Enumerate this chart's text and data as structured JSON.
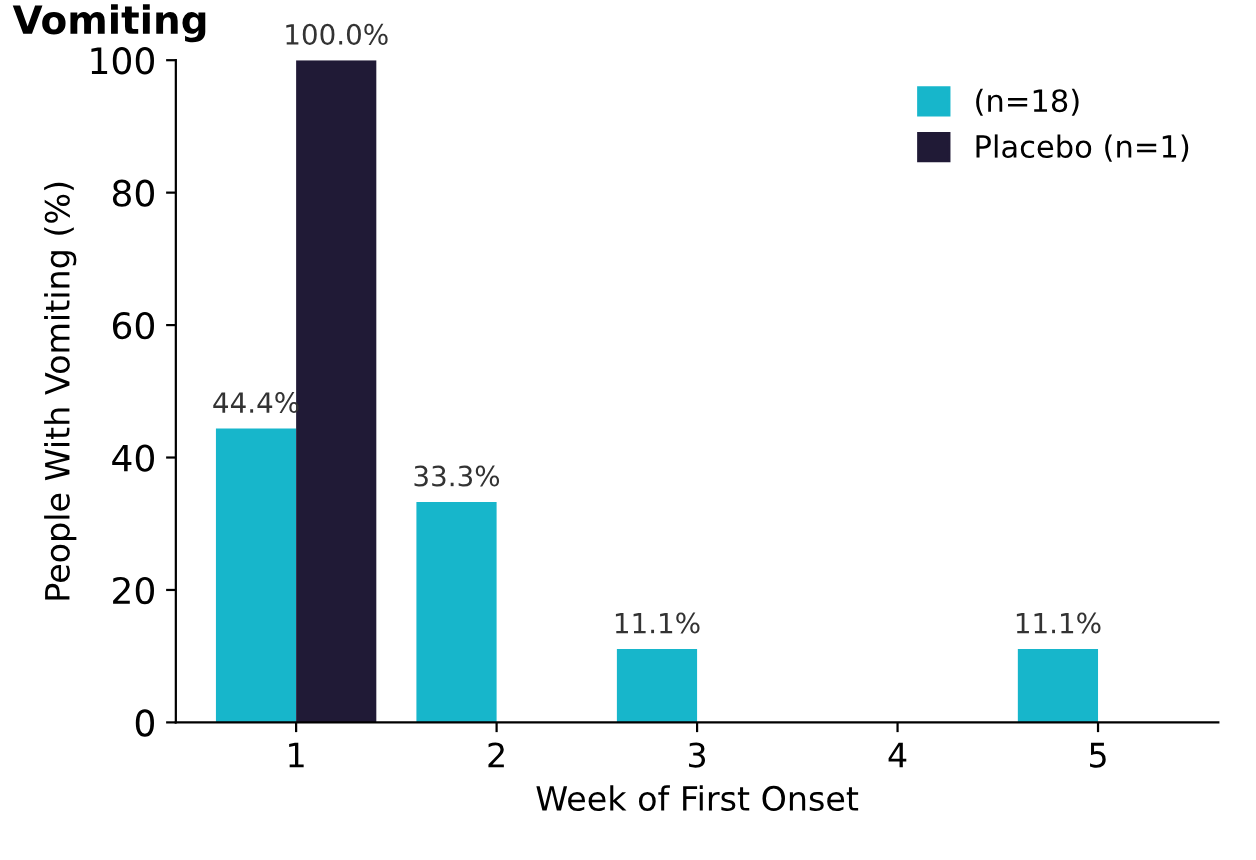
{
  "chart_data": {
    "type": "bar",
    "title": "Vomiting",
    "xlabel": "Week of First Onset",
    "ylabel": "People With Vomiting (%)",
    "categories": [
      "1",
      "2",
      "3",
      "4",
      "5"
    ],
    "series": [
      {
        "name": "(n=18)",
        "color": "#17b6cb",
        "values": [
          44.4,
          33.3,
          11.1,
          0,
          11.1
        ],
        "value_labels": [
          "44.4%",
          "33.3%",
          "11.1%",
          null,
          "11.1%"
        ]
      },
      {
        "name": "Placebo (n=1)",
        "color": "#201a36",
        "values": [
          100,
          null,
          null,
          null,
          null
        ],
        "value_labels": [
          "100.0%",
          null,
          null,
          null,
          null
        ]
      }
    ],
    "ylim": [
      0,
      100
    ],
    "yticks": [
      0,
      20,
      40,
      60,
      80,
      100
    ],
    "legend": "top right",
    "grid": false
  }
}
